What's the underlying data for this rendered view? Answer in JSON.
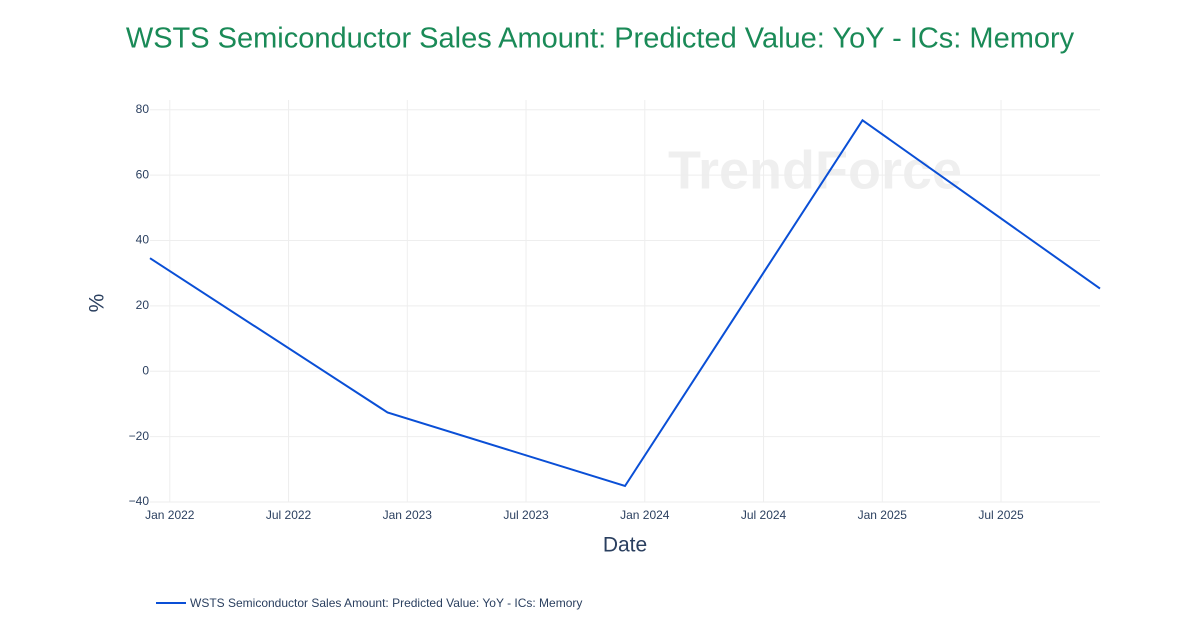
{
  "chart_data": {
    "type": "line",
    "title": "WSTS Semiconductor Sales Amount: Predicted Value: YoY - ICs: Memory",
    "watermark": "TrendForce",
    "x_label": "Date",
    "y_label": "%",
    "x": [
      "2021-12",
      "2022-12",
      "2023-12",
      "2024-12",
      "2025-12"
    ],
    "series": [
      {
        "name": "WSTS Semiconductor Sales Amount: Predicted Value: YoY - ICs: Memory",
        "color": "#0a4fd6",
        "values": [
          34.6,
          -12.6,
          -35.1,
          76.8,
          25.3
        ]
      }
    ],
    "xlim": [
      "2021-12",
      "2025-12"
    ],
    "xticks": [
      {
        "value": "2022-01",
        "label": "Jan 2022"
      },
      {
        "value": "2022-07",
        "label": "Jul 2022"
      },
      {
        "value": "2023-01",
        "label": "Jan 2023"
      },
      {
        "value": "2023-07",
        "label": "Jul 2023"
      },
      {
        "value": "2024-01",
        "label": "Jan 2024"
      },
      {
        "value": "2024-07",
        "label": "Jul 2024"
      },
      {
        "value": "2025-01",
        "label": "Jan 2025"
      },
      {
        "value": "2025-07",
        "label": "Jul 2025"
      }
    ],
    "ylim": [
      -40,
      83
    ],
    "yticks": [
      {
        "value": -40,
        "label": "−40"
      },
      {
        "value": -20,
        "label": "−20"
      },
      0,
      20,
      40,
      60,
      80
    ],
    "grid": true
  }
}
